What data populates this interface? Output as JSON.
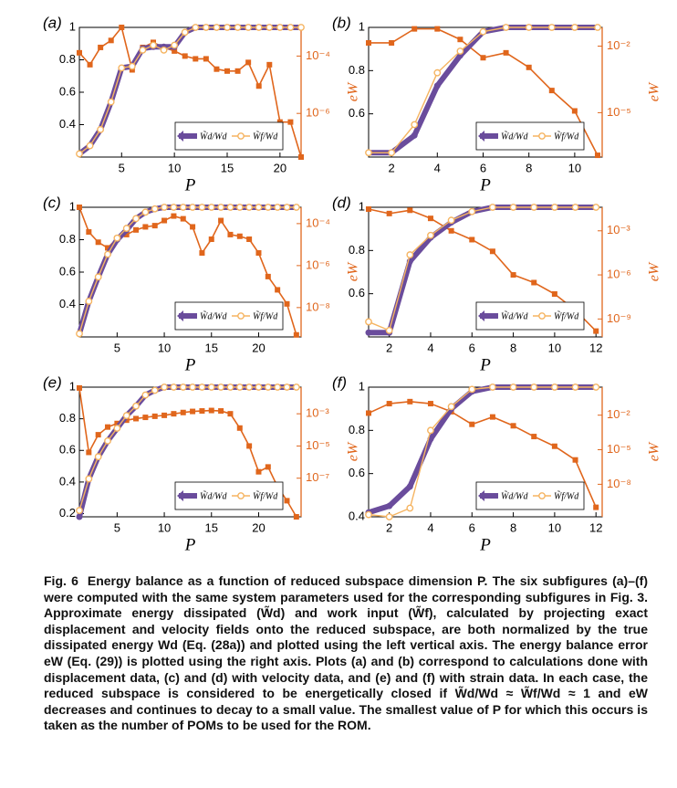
{
  "chart_data": [
    {
      "type": "line",
      "label": "(a)",
      "xlabel": "P",
      "y2label": "eW",
      "legend": "lower right",
      "y2scale": "log",
      "x": [
        1,
        2,
        3,
        4,
        5,
        6,
        7,
        8,
        9,
        10,
        11,
        12,
        13,
        14,
        15,
        16,
        17,
        18,
        19,
        20,
        21,
        22
      ],
      "xlim": [
        1,
        22
      ],
      "xticks": [
        5,
        10,
        15,
        20
      ],
      "ylim": [
        0.2,
        1
      ],
      "yticks": [
        0.4,
        0.6,
        0.8,
        1
      ],
      "y2lim": [
        3e-08,
        0.001
      ],
      "y2ticks": [
        {
          "value": 0.0001,
          "label": "10⁻⁴"
        },
        {
          "value": 1e-06,
          "label": "10⁻⁶"
        }
      ],
      "series": [
        {
          "name": "W̃d/Wd",
          "color": "#6a4c9c",
          "values": [
            0.22,
            0.27,
            0.37,
            0.54,
            0.75,
            0.76,
            0.87,
            0.88,
            0.88,
            0.88,
            0.97,
            1,
            1,
            1,
            1,
            1,
            1,
            1,
            1,
            1,
            1,
            1
          ]
        },
        {
          "name": "W̃f/Wd",
          "color": "#f5b461",
          "values": [
            0.22,
            0.27,
            0.37,
            0.54,
            0.75,
            0.76,
            0.86,
            0.89,
            0.86,
            0.89,
            0.97,
            1,
            1,
            1,
            1,
            1,
            1,
            1,
            1,
            1,
            1,
            1
          ]
        },
        {
          "axis": "y2",
          "color": "#e0661c",
          "values": [
            0.00013,
            5e-05,
            0.0002,
            0.00035,
            0.001,
            3.3e-05,
            0.0002,
            0.0003,
            0.0002,
            0.00015,
            0.0001,
            8e-05,
            8e-05,
            3.5e-05,
            3e-05,
            3e-05,
            6e-05,
            9e-06,
            5e-05,
            5e-07,
            5e-07,
            3e-08
          ]
        }
      ]
    },
    {
      "type": "line",
      "label": "(b)",
      "xlabel": "P",
      "y2label": "eW",
      "legend": "lower right",
      "y2scale": "log",
      "x": [
        1,
        2,
        3,
        4,
        5,
        6,
        7,
        8,
        9,
        10,
        11
      ],
      "xlim": [
        1,
        11.2
      ],
      "xticks": [
        2,
        4,
        6,
        8,
        10
      ],
      "ylim": [
        0.4,
        1
      ],
      "yticks": [
        0.6,
        0.8,
        1
      ],
      "y2lim": [
        1e-07,
        0.07
      ],
      "y2ticks": [
        {
          "value": 0.01,
          "label": "10⁻²"
        },
        {
          "value": 1e-05,
          "label": "10⁻⁵"
        }
      ],
      "series": [
        {
          "name": "W̃d/Wd",
          "color": "#6a4c9c",
          "values": [
            0.42,
            0.42,
            0.5,
            0.73,
            0.87,
            0.98,
            1,
            1,
            1,
            1,
            1
          ]
        },
        {
          "name": "W̃f/Wd",
          "color": "#f5b461",
          "values": [
            0.42,
            0.42,
            0.55,
            0.79,
            0.89,
            0.98,
            1,
            1,
            1,
            1,
            1
          ]
        },
        {
          "axis": "y2",
          "color": "#e0661c",
          "values": [
            0.014,
            0.014,
            0.06,
            0.06,
            0.02,
            0.003,
            0.005,
            0.0011,
            0.0001,
            1.2e-05,
            1.2e-07
          ]
        }
      ]
    },
    {
      "type": "line",
      "label": "(c)",
      "xlabel": "P",
      "y2label": "eW",
      "legend": "lower right",
      "y2scale": "log",
      "x": [
        1,
        2,
        3,
        4,
        5,
        6,
        7,
        8,
        9,
        10,
        11,
        12,
        13,
        14,
        15,
        16,
        17,
        18,
        19,
        20,
        21,
        22,
        23,
        24
      ],
      "xlim": [
        1,
        24.5
      ],
      "xticks": [
        5,
        10,
        15,
        20
      ],
      "ylim": [
        0.2,
        1
      ],
      "yticks": [
        0.4,
        0.6,
        0.8,
        1
      ],
      "y2lim": [
        4e-10,
        0.0006
      ],
      "y2ticks": [
        {
          "value": 0.0001,
          "label": "10⁻⁴"
        },
        {
          "value": 1e-06,
          "label": "10⁻⁶"
        },
        {
          "value": 1e-08,
          "label": "10⁻⁸"
        }
      ],
      "series": [
        {
          "name": "W̃d/Wd",
          "color": "#6a4c9c",
          "values": [
            0.22,
            0.42,
            0.57,
            0.71,
            0.8,
            0.86,
            0.93,
            0.97,
            0.99,
            1,
            1,
            1,
            1,
            1,
            1,
            1,
            1,
            1,
            1,
            1,
            1,
            1,
            1,
            1
          ]
        },
        {
          "name": "W̃f/Wd",
          "color": "#f5b461",
          "values": [
            0.22,
            0.42,
            0.57,
            0.71,
            0.81,
            0.87,
            0.93,
            0.97,
            0.99,
            1,
            1,
            1,
            1,
            1,
            1,
            1,
            1,
            1,
            1,
            1,
            1,
            1,
            1,
            1
          ]
        },
        {
          "axis": "y2",
          "color": "#e0661c",
          "values": [
            0.0006,
            4e-05,
            1.3e-05,
            7e-06,
            2e-05,
            3e-05,
            5e-05,
            7e-05,
            8e-05,
            0.00014,
            0.00023,
            0.00017,
            7e-05,
            4e-06,
            1.8e-05,
            0.00014,
            3e-05,
            2.5e-05,
            1.8e-05,
            4e-06,
            3e-07,
            7e-08,
            1.5e-08,
            5e-10
          ]
        }
      ]
    },
    {
      "type": "line",
      "label": "(d)",
      "xlabel": "P",
      "y2label": "eW",
      "legend": "lower right",
      "y2scale": "log",
      "x": [
        1,
        2,
        3,
        4,
        5,
        6,
        7,
        8,
        9,
        10,
        11,
        12
      ],
      "xlim": [
        1,
        12.3
      ],
      "xticks": [
        2,
        4,
        6,
        8,
        10,
        12
      ],
      "ylim": [
        0.4,
        1
      ],
      "yticks": [
        0.6,
        0.8,
        1
      ],
      "y2lim": [
        6e-11,
        0.04
      ],
      "y2ticks": [
        {
          "value": 0.001,
          "label": "10⁻³"
        },
        {
          "value": 1e-06,
          "label": "10⁻⁶"
        },
        {
          "value": 1e-09,
          "label": "10⁻⁹"
        }
      ],
      "series": [
        {
          "name": "W̃d/Wd",
          "color": "#6a4c9c",
          "values": [
            0.42,
            0.42,
            0.75,
            0.86,
            0.93,
            0.98,
            1,
            1,
            1,
            1,
            1,
            1
          ]
        },
        {
          "name": "W̃f/Wd",
          "color": "#f5b461",
          "values": [
            0.47,
            0.43,
            0.78,
            0.87,
            0.94,
            0.98,
            1,
            1,
            1,
            1,
            1,
            1
          ]
        },
        {
          "axis": "y2",
          "color": "#e0661c",
          "values": [
            0.03,
            0.015,
            0.025,
            0.007,
            0.001,
            0.00025,
            4e-05,
            1e-06,
            3e-07,
            5e-08,
            4e-09,
            1.5e-10
          ]
        }
      ]
    },
    {
      "type": "line",
      "label": "(e)",
      "xlabel": "P",
      "y2label": "eW",
      "legend": "lower right",
      "y2scale": "log",
      "x": [
        1,
        2,
        3,
        4,
        5,
        6,
        7,
        8,
        9,
        10,
        11,
        12,
        13,
        14,
        15,
        16,
        17,
        18,
        19,
        20,
        21,
        22,
        23,
        24
      ],
      "xlim": [
        1,
        24.5
      ],
      "xticks": [
        5,
        10,
        15,
        20
      ],
      "ylim": [
        0.18,
        1
      ],
      "yticks": [
        0.2,
        0.4,
        0.6,
        0.8,
        1
      ],
      "y2lim": [
        4e-10,
        0.045
      ],
      "y2ticks": [
        {
          "value": 0.001,
          "label": "10⁻³"
        },
        {
          "value": 1e-05,
          "label": "10⁻⁵"
        },
        {
          "value": 1e-07,
          "label": "10⁻⁷"
        }
      ],
      "series": [
        {
          "name": "W̃d/Wd",
          "color": "#6a4c9c",
          "values": [
            0.18,
            0.42,
            0.56,
            0.66,
            0.74,
            0.82,
            0.88,
            0.95,
            0.98,
            1,
            1,
            1,
            1,
            1,
            1,
            1,
            1,
            1,
            1,
            1,
            1,
            1,
            1,
            1
          ]
        },
        {
          "name": "W̃f/Wd",
          "color": "#f5b461",
          "values": [
            0.22,
            0.42,
            0.56,
            0.66,
            0.74,
            0.82,
            0.88,
            0.95,
            0.98,
            1,
            1,
            1,
            1,
            1,
            1,
            1,
            1,
            1,
            1,
            1,
            1,
            1,
            1,
            1
          ]
        },
        {
          "axis": "y2",
          "color": "#e0661c",
          "values": [
            0.04,
            4e-06,
            5e-05,
            0.00015,
            0.00025,
            0.0004,
            0.0005,
            0.0006,
            0.0007,
            0.0008,
            0.001,
            0.0012,
            0.0014,
            0.0015,
            0.0016,
            0.0015,
            0.001,
            0.00013,
            1e-05,
            2.5e-07,
            5e-07,
            3e-08,
            4e-09,
            4e-10
          ]
        }
      ]
    },
    {
      "type": "line",
      "label": "(f)",
      "xlabel": "P",
      "y2label": "eW",
      "legend": "lower right",
      "y2scale": "log",
      "x": [
        1,
        2,
        3,
        4,
        5,
        6,
        7,
        8,
        9,
        10,
        11,
        12
      ],
      "xlim": [
        1,
        12.3
      ],
      "xticks": [
        2,
        4,
        6,
        8,
        10,
        12
      ],
      "ylim": [
        0.4,
        1
      ],
      "yticks": [
        0.4,
        0.6,
        0.8,
        1
      ],
      "y2lim": [
        1.5e-11,
        2.7
      ],
      "y2ticks": [
        {
          "value": 0.01,
          "label": "10⁻²"
        },
        {
          "value": 1e-05,
          "label": "10⁻⁵"
        },
        {
          "value": 1e-08,
          "label": "10⁻⁸"
        }
      ],
      "series": [
        {
          "name": "W̃d/Wd",
          "color": "#6a4c9c",
          "values": [
            0.42,
            0.45,
            0.54,
            0.76,
            0.9,
            0.98,
            1,
            1,
            1,
            1,
            1,
            1
          ]
        },
        {
          "name": "W̃f/Wd",
          "color": "#f5b461",
          "values": [
            0.41,
            0.4,
            0.44,
            0.8,
            0.91,
            0.99,
            1,
            1,
            1,
            1,
            1,
            1
          ]
        },
        {
          "axis": "y2",
          "color": "#e0661c",
          "values": [
            0.015,
            0.1,
            0.15,
            0.1,
            0.02,
            0.0016,
            0.007,
            0.0012,
            0.00014,
            2e-05,
            1.3e-06,
            1e-10
          ]
        }
      ]
    }
  ],
  "caption": {
    "label": "Fig. 6",
    "text": "Energy balance as a function of reduced subspace dimension P. The six subfigures (a)–(f) were computed with the same system parameters used for the corresponding subfigures in Fig. 3. Approximate energy dissipated (W̃d) and work input (W̃f), calculated by projecting exact displacement and velocity fields onto the reduced subspace, are both normalized by the true dissipated energy Wd (Eq. (28a)) and plotted using the left vertical axis. The energy balance error eW (Eq. (29)) is plotted using the right axis. Plots (a) and (b) correspond to calculations done with displacement data, (c) and (d) with velocity data, and (e) and (f) with strain data. In each case, the reduced subspace is considered to be energetically closed if W̃d/Wd ≈ W̃f/Wd ≈ 1 and eW decreases and continues to decay to a small value. The smallest value of P for which this occurs is taken as the number of POMs to be used for the ROM."
  }
}
